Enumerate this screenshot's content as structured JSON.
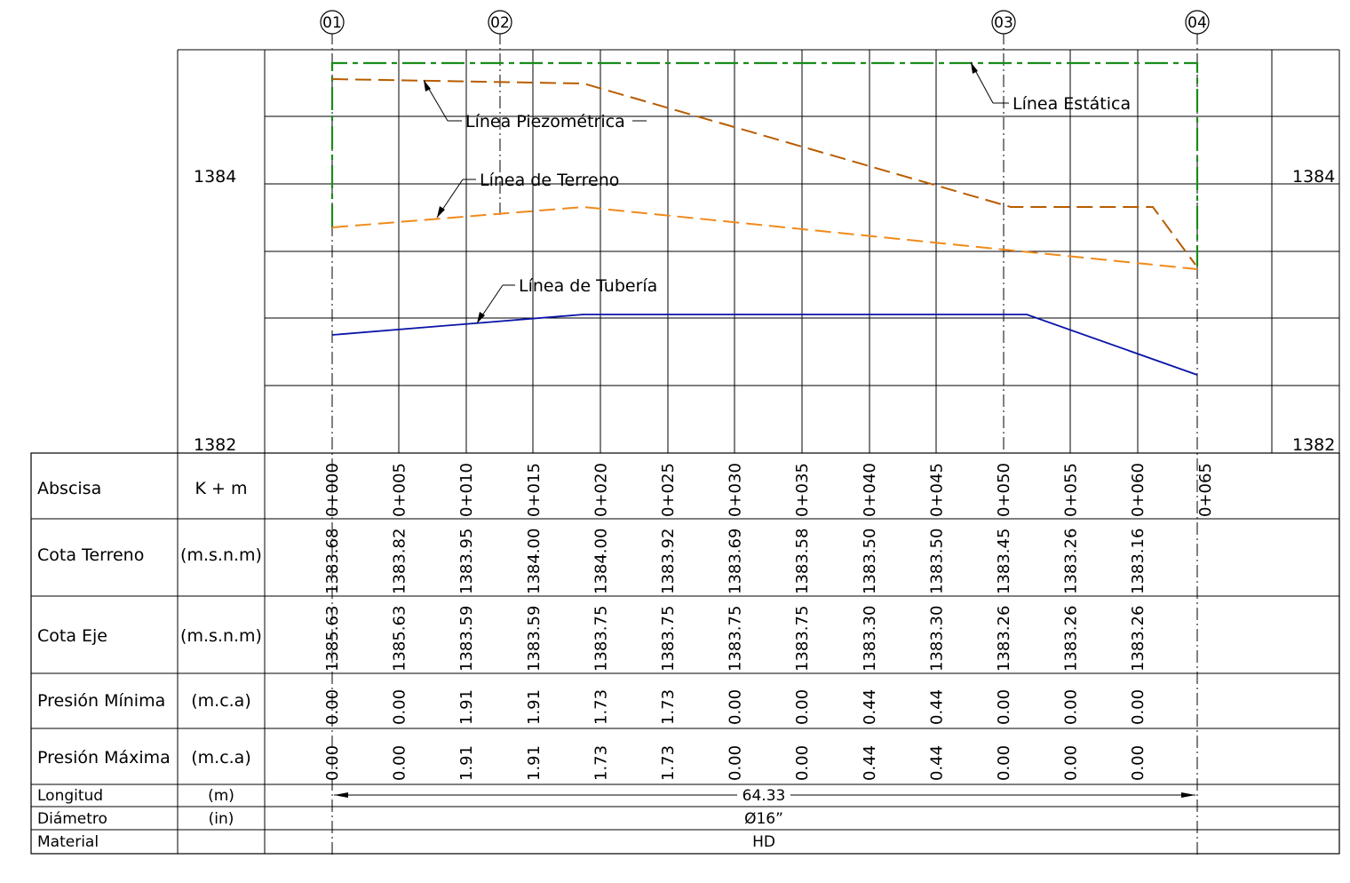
{
  "markers": [
    "01",
    "02",
    "03",
    "04"
  ],
  "elevation_labels": {
    "top": "1384",
    "bottom": "1382"
  },
  "callouts": {
    "estatica": "Línea Estática",
    "piezometrica": "Línea Piezométrica",
    "terreno": "Línea de Terreno",
    "tuberia": "Línea de Tubería"
  },
  "rows": {
    "abscisa": {
      "label": "Abscisa",
      "unit": "K + m"
    },
    "cota_terreno": {
      "label": "Cota Terreno",
      "unit": "(m.s.n.m)"
    },
    "cota_eje": {
      "label": "Cota Eje",
      "unit": "(m.s.n.m)"
    },
    "presion_minima": {
      "label": "Presión Mínima",
      "unit": "(m.c.a)"
    },
    "presion_maxima": {
      "label": "Presión Máxima",
      "unit": "(m.c.a)"
    },
    "longitud": {
      "label": "Longitud",
      "unit": "(m)",
      "value": "64.33"
    },
    "diametro": {
      "label": "Diámetro",
      "unit": "(in)",
      "value": "Ø16”"
    },
    "material": {
      "label": "Material",
      "value": "HD"
    }
  },
  "stations": [
    "0+000",
    "0+005",
    "0+010",
    "0+015",
    "0+020",
    "0+025",
    "0+030",
    "0+035",
    "0+040",
    "0+045",
    "0+050",
    "0+055",
    "0+060",
    "0+065"
  ],
  "cota_terreno": [
    "1383.68",
    "1383.82",
    "1383.95",
    "1384.00",
    "1384.00",
    "1383.92",
    "1383.69",
    "1383.58",
    "1383.50",
    "1383.50",
    "1383.45",
    "1383.26",
    "1383.16"
  ],
  "cota_eje": [
    "1385.63",
    "1385.63",
    "1383.59",
    "1383.59",
    "1383.75",
    "1383.75",
    "1383.75",
    "1383.75",
    "1383.30",
    "1383.30",
    "1383.26",
    "1383.26",
    "1383.26"
  ],
  "presion_minima": [
    "0.00",
    "0.00",
    "1.91",
    "1.91",
    "1.73",
    "1.73",
    "0.00",
    "0.00",
    "0.44",
    "0.44",
    "0.00",
    "0.00",
    "0.00"
  ],
  "presion_maxima": [
    "0.00",
    "0.00",
    "1.91",
    "1.91",
    "1.73",
    "1.73",
    "0.00",
    "0.00",
    "0.44",
    "0.44",
    "0.00",
    "0.00",
    "0.00"
  ],
  "colors": {
    "estatica": "#1a8c1a",
    "piezometrica": "#b85c00",
    "terreno": "#f08a1a",
    "tuberia": "#0a14a8"
  },
  "chart_data": {
    "type": "line",
    "x_label": "Abscisa",
    "ylim": [
      1382,
      1385
    ],
    "series": [
      {
        "name": "Línea Estática",
        "x": [
          0,
          64.33
        ],
        "y": [
          1384.88,
          1384.88
        ]
      },
      {
        "name": "Línea Piezométrica",
        "x": [
          0,
          19,
          51,
          61,
          64.33
        ],
        "y": [
          1384.85,
          1384.82,
          1383.75,
          1383.75,
          1383.3
        ]
      },
      {
        "name": "Línea de Terreno",
        "x": [
          0,
          19,
          64.33
        ],
        "y": [
          1383.68,
          1383.75,
          1383.3
        ]
      },
      {
        "name": "Línea de Tubería",
        "x": [
          0,
          19,
          51.9,
          64.33
        ],
        "y": [
          1383.12,
          1383.2,
          1383.2,
          1382.84
        ]
      }
    ]
  }
}
